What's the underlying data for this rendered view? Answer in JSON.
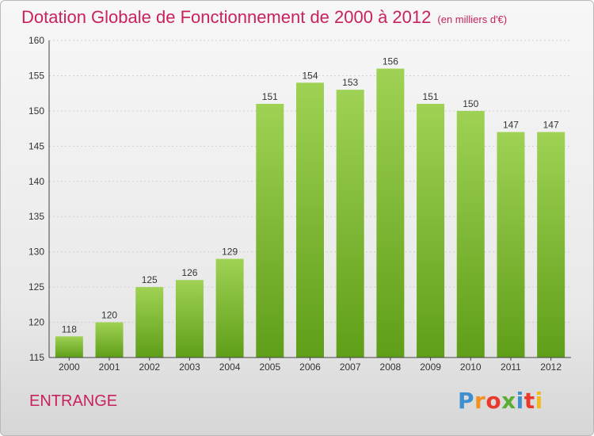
{
  "title": "Dotation Globale de Fonctionnement de 2000 à 2012",
  "subtitle": "(en milliers d'€)",
  "commune": "ENTRANGE",
  "logo": {
    "letters": [
      "P",
      "r",
      "o",
      "x",
      "i",
      "t",
      "i"
    ],
    "colors": [
      "#3d8fd0",
      "#f29121",
      "#e8392b",
      "#5aad35",
      "#3d8fd0",
      "#e8392b",
      "#f2b81f"
    ]
  },
  "colors": {
    "title": "#c8215f",
    "bar_top": "#9fd254",
    "bar_bottom": "#5f9e18"
  },
  "chart_data": {
    "type": "bar",
    "categories": [
      "2000",
      "2001",
      "2002",
      "2003",
      "2004",
      "2005",
      "2006",
      "2007",
      "2008",
      "2009",
      "2010",
      "2011",
      "2012"
    ],
    "values": [
      118,
      120,
      125,
      126,
      129,
      151,
      154,
      153,
      156,
      151,
      150,
      147,
      147
    ],
    "title": "Dotation Globale de Fonctionnement de 2000 à 2012",
    "subtitle": "(en milliers d'€)",
    "ylim": [
      115,
      160
    ],
    "yticks": [
      115,
      120,
      125,
      130,
      135,
      140,
      145,
      150,
      155,
      160
    ],
    "grid": true,
    "data_labels": true
  }
}
